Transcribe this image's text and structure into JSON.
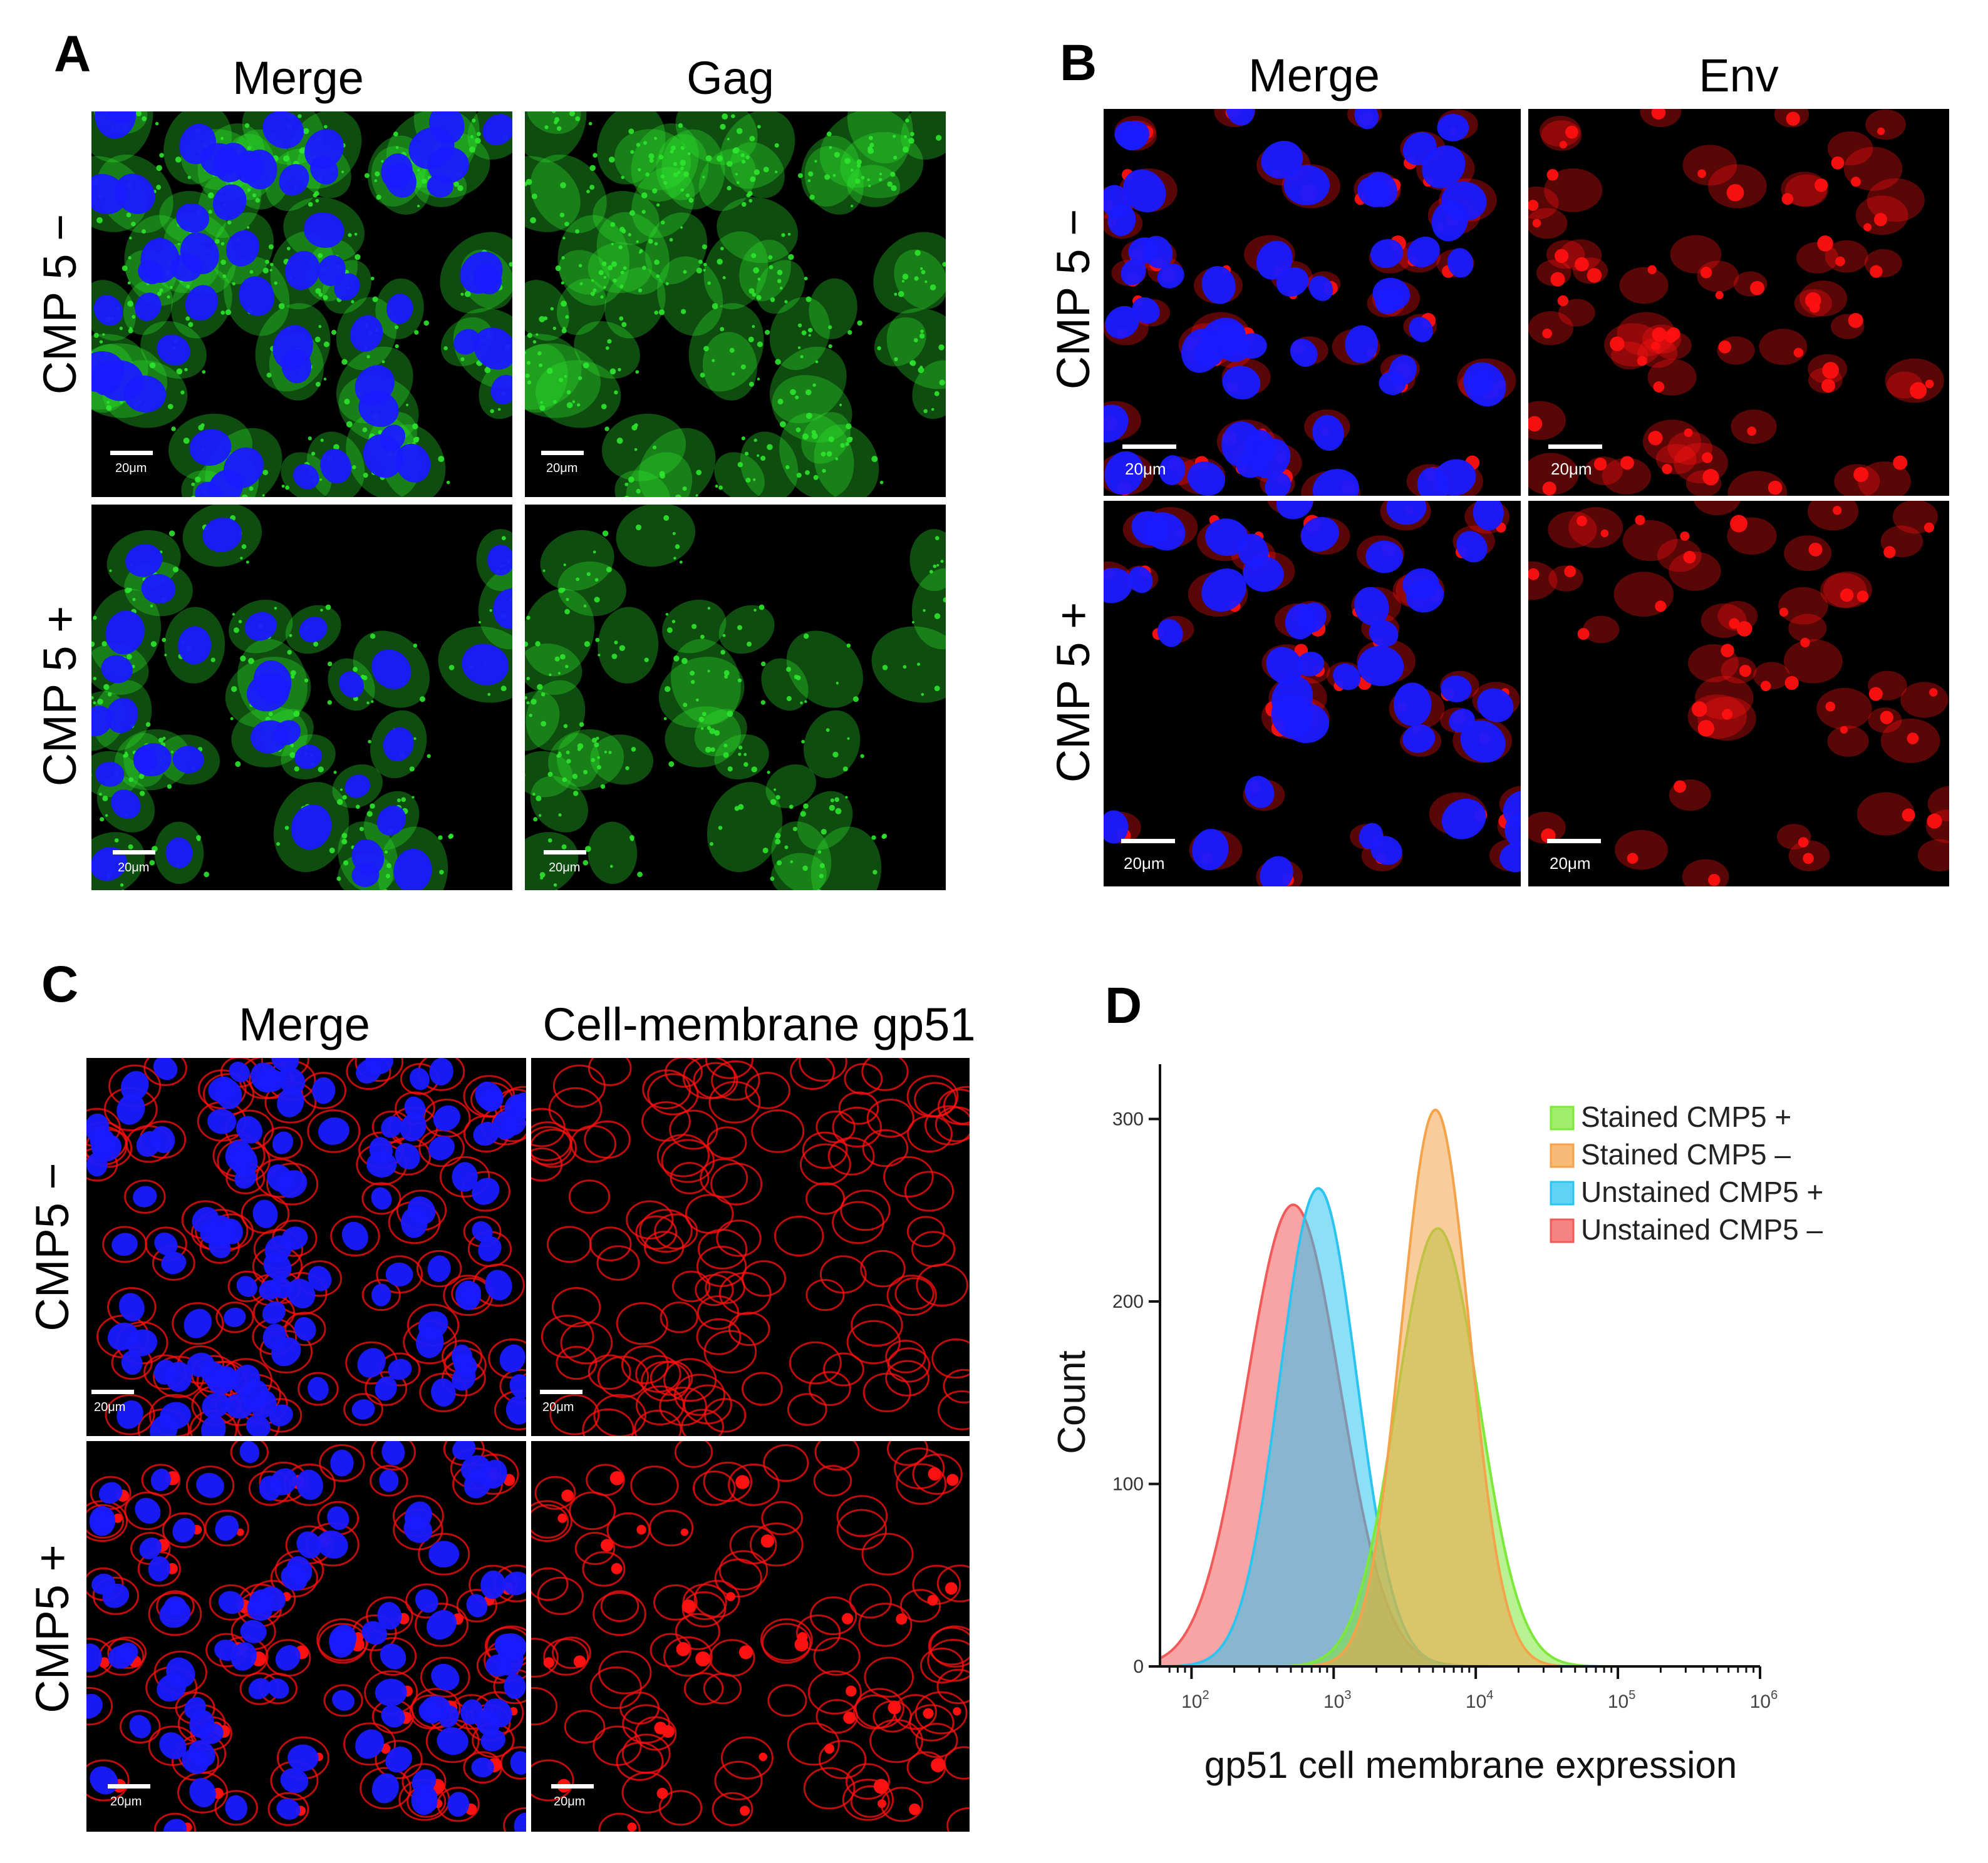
{
  "panels": {
    "A": {
      "letter": "A",
      "columns": [
        "Merge",
        "Gag"
      ],
      "rows": [
        "CMP 5 −",
        "CMP 5 +"
      ],
      "scale_label": "20μm"
    },
    "B": {
      "letter": "B",
      "columns": [
        "Merge",
        "Env"
      ],
      "rows": [
        "CMP 5 −",
        "CMP 5 +"
      ],
      "scale_label": "20μm"
    },
    "C": {
      "letter": "C",
      "columns": [
        "Merge",
        "Cell-membrane gp51"
      ],
      "rows": [
        "CMP5 −",
        "CMP5 +"
      ],
      "scale_label": "20μm"
    },
    "D": {
      "letter": "D"
    }
  },
  "colors": {
    "dapi": "#1a1aff",
    "gag": "#2ee62e",
    "env": "#ff1010",
    "stained_plus": "#7ee83a",
    "stained_minus": "#f4a34a",
    "unstained_plus": "#2bc4f0",
    "unstained_minus": "#f25a5a"
  },
  "chart_data": {
    "type": "area",
    "title": "",
    "xlabel": "gp51 cell membrane expression",
    "ylabel": "Count",
    "x_scale": "log",
    "xlim": [
      60,
      1000000
    ],
    "ylim": [
      0,
      330
    ],
    "x_ticks": [
      {
        "value": 100,
        "base": "10",
        "exp": "2"
      },
      {
        "value": 1000,
        "base": "10",
        "exp": "3"
      },
      {
        "value": 10000,
        "base": "10",
        "exp": "4"
      },
      {
        "value": 100000,
        "base": "10",
        "exp": "5"
      },
      {
        "value": 1000000,
        "base": "10",
        "exp": "6"
      }
    ],
    "y_ticks": [
      "0",
      "100",
      "200",
      "300"
    ],
    "legend_position": "top-right",
    "series": [
      {
        "name": "Stained CMP5 +",
        "color_key": "stained_plus",
        "peak_x": 5400,
        "peak_y": 240,
        "sigma_decades": 0.29
      },
      {
        "name": "Stained CMP5 –",
        "color_key": "stained_minus",
        "peak_x": 5200,
        "peak_y": 305,
        "sigma_decades": 0.24
      },
      {
        "name": "Unstained CMP5 +",
        "color_key": "unstained_plus",
        "peak_x": 780,
        "peak_y": 262,
        "sigma_decades": 0.27
      },
      {
        "name": "Unstained CMP5 –",
        "color_key": "unstained_minus",
        "peak_x": 520,
        "peak_y": 253,
        "sigma_decades": 0.33
      }
    ]
  }
}
